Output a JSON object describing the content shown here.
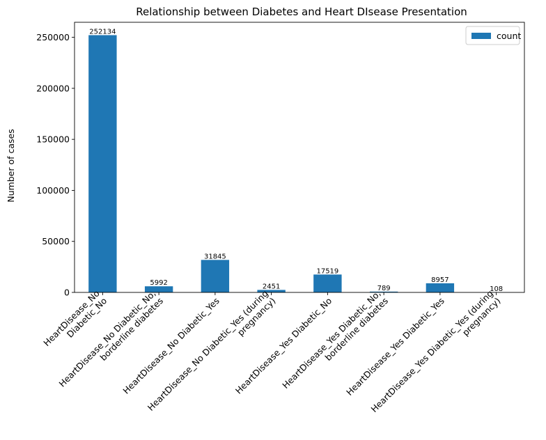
{
  "chart_data": {
    "type": "bar",
    "title": "Relationship between Diabetes and Heart DIsease Presentation",
    "xlabel": "",
    "ylabel": "Number of cases",
    "categories": [
      [
        "HeartDisease_No",
        "Diabetic_No"
      ],
      [
        "HeartDisease_No Diabetic_No,",
        "borderline diabetes"
      ],
      [
        "HeartDisease_No Diabetic_Yes"
      ],
      [
        "HeartDisease_No Diabetic_Yes (during",
        "pregnancy)"
      ],
      [
        "HeartDisease_Yes Diabetic_No"
      ],
      [
        "HeartDisease_Yes Diabetic_No,",
        "borderline diabetes"
      ],
      [
        "HeartDisease_Yes Diabetic_Yes"
      ],
      [
        "HeartDisease_Yes Diabetic_Yes (during",
        "pregnancy)"
      ]
    ],
    "series": [
      {
        "name": "count",
        "color": "#1f77b4",
        "values": [
          252134,
          5992,
          31845,
          2451,
          17519,
          789,
          8957,
          108
        ]
      }
    ],
    "data_labels": [
      "252134",
      "5992",
      "31845",
      "2451",
      "17519",
      "789",
      "8957",
      "108"
    ],
    "ylim": [
      0,
      264740
    ],
    "yticks": [
      0,
      50000,
      100000,
      150000,
      200000,
      250000
    ],
    "ytick_labels": [
      "0",
      "50000",
      "100000",
      "150000",
      "200000",
      "250000"
    ],
    "grid": false,
    "legend": {
      "position": "top-right",
      "entries": [
        "count"
      ]
    }
  }
}
